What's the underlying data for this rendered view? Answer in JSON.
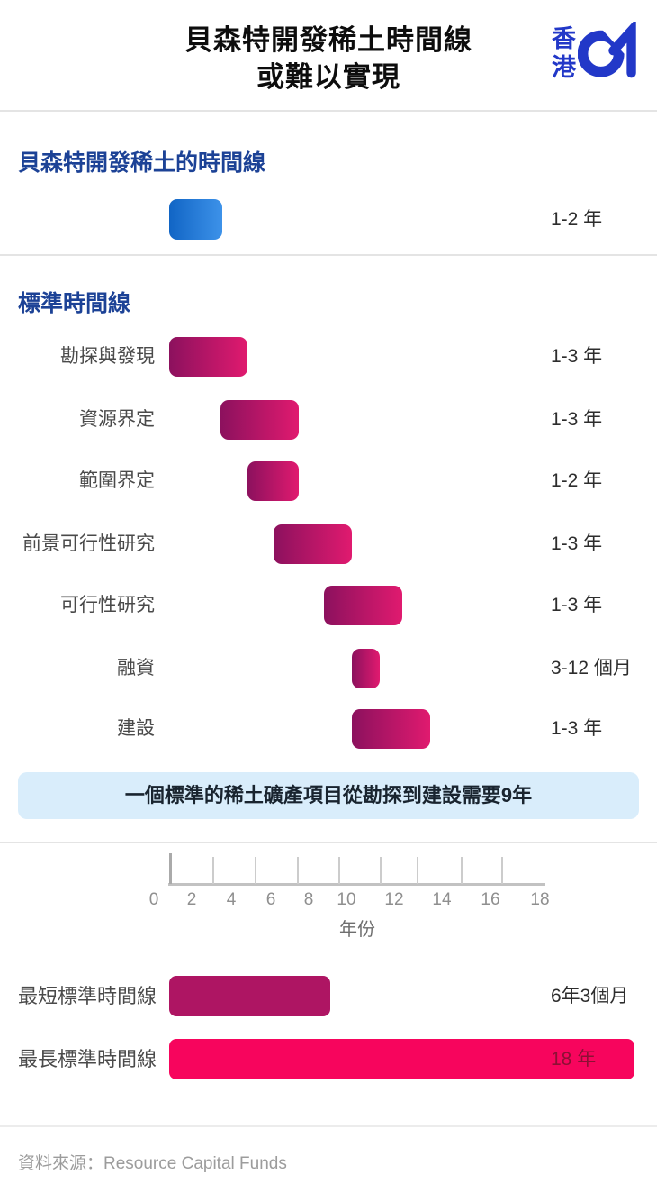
{
  "header": {
    "title_line1": "貝森特開發稀土時間線",
    "title_line2": "或難以實現",
    "logo_top": "香",
    "logo_bottom": "港",
    "logo_name": "HK01"
  },
  "callout": "一個標準的稀土礦產項目從勘探到建設需要9年",
  "footer": {
    "source": "資料來源：Resource Capital Funds"
  },
  "colors": {
    "heading_blue": "#1C4296",
    "logo_blue": "#2238C8",
    "bar_blue_start": "#1165C5",
    "bar_blue_end": "#3D92E9",
    "bar_magenta_start": "#8C115E",
    "bar_magenta_end": "#E01A6F",
    "bar_shortest": "#AE1563",
    "bar_longest": "#F7055D",
    "longest_value_text": "#8C1034",
    "callout_bg": "#D9EDFB"
  },
  "chart_data": {
    "type": "bar",
    "subtype": "gantt-timeline",
    "title": "貝森特開發稀土時間線 或難以實現",
    "xlabel": "年份",
    "axis": {
      "ticks": [
        0,
        2,
        4,
        6,
        8,
        10,
        12,
        14,
        16,
        18
      ],
      "xlim": [
        0,
        18
      ],
      "grid": false
    },
    "bessent_timeline": {
      "heading": "貝森特開發稀土的時間線",
      "rows": [
        {
          "label": "",
          "duration_label": "1-2 年",
          "start_year": 0,
          "end_year": 2.5
        }
      ]
    },
    "standard_timeline": {
      "heading": "標準時間線",
      "rows": [
        {
          "label": "勘探與發現",
          "duration_label": "1-3 年",
          "start_year": 0,
          "end_year": 3.7
        },
        {
          "label": "資源界定",
          "duration_label": "1-3 年",
          "start_year": 2.4,
          "end_year": 6.1
        },
        {
          "label": "範圍界定",
          "duration_label": "1-2 年",
          "start_year": 3.7,
          "end_year": 6.1
        },
        {
          "label": "前景可行性研究",
          "duration_label": "1-3 年",
          "start_year": 4.9,
          "end_year": 8.6
        },
        {
          "label": "可行性研究",
          "duration_label": "1-3 年",
          "start_year": 7.3,
          "end_year": 11
        },
        {
          "label": "融資",
          "duration_label": "3-12 個月",
          "start_year": 8.6,
          "end_year": 9.9
        },
        {
          "label": "建設",
          "duration_label": "1-3 年",
          "start_year": 8.6,
          "end_year": 12.3
        }
      ]
    },
    "summary_rows": [
      {
        "label": "最短標準時間線",
        "value_label": "6年3個月",
        "start_year": 0,
        "end_year": 7.6
      },
      {
        "label": "最長標準時間線",
        "value_label": "18 年",
        "start_year": 0,
        "end_year": 21.9
      }
    ]
  }
}
